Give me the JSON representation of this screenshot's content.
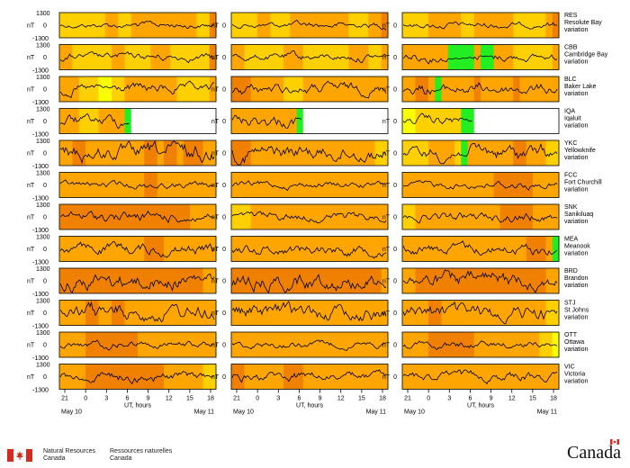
{
  "chart_data": {
    "type": "line",
    "title": "",
    "ylabel": "nT",
    "ytick_top": "1300",
    "ytick_mid": "0",
    "ytick_bottom": "-1300",
    "ylim": [
      -1300,
      1300
    ],
    "xlabel": "UT, hours",
    "x_ticks": [
      "21",
      "0",
      "3",
      "6",
      "9",
      "12",
      "15",
      "18"
    ],
    "date_left": "May 10",
    "date_right": "May 11",
    "panel_columns": 3,
    "stations": [
      {
        "code": "RES",
        "name": "Resolute Bay",
        "suffix": "variation",
        "activity": [
          [
            2,
            2,
            2,
            2,
            2,
            2,
            2,
            3,
            3,
            2,
            2,
            3,
            3,
            3,
            3,
            3,
            3,
            3,
            3,
            3,
            3,
            2,
            2,
            4
          ],
          [
            2,
            2,
            2,
            2,
            3,
            3,
            2,
            2,
            2,
            3,
            3,
            3,
            3,
            3,
            3,
            3,
            3,
            3,
            2,
            2,
            2,
            3,
            3,
            4
          ],
          [
            2,
            2,
            2,
            2,
            3,
            3,
            3,
            3,
            3,
            2,
            2,
            3,
            3,
            3,
            3,
            3,
            3,
            2,
            2,
            2,
            2,
            2,
            3,
            4
          ]
        ]
      },
      {
        "code": "CBB",
        "name": "Cambridge Bay",
        "suffix": "variation",
        "activity": [
          [
            3,
            3,
            2,
            2,
            2,
            2,
            2,
            2,
            3,
            3,
            2,
            2,
            2,
            2,
            3,
            3,
            3,
            2,
            2,
            2,
            2,
            2,
            2,
            4
          ],
          [
            3,
            3,
            2,
            2,
            2,
            2,
            2,
            2,
            3,
            3,
            3,
            2,
            2,
            2,
            2,
            2,
            2,
            2,
            3,
            3,
            3,
            2,
            2,
            3
          ],
          [
            3,
            3,
            3,
            3,
            3,
            3,
            3,
            0,
            0,
            0,
            0,
            3,
            0,
            0,
            3,
            3,
            3,
            2,
            2,
            2,
            2,
            2,
            2,
            3
          ]
        ]
      },
      {
        "code": "BLC",
        "name": "Baker Lake",
        "suffix": "variation",
        "activity": [
          [
            3,
            3,
            3,
            2,
            2,
            2,
            1,
            1,
            2,
            2,
            3,
            3,
            3,
            3,
            3,
            3,
            3,
            3,
            2,
            2,
            2,
            2,
            2,
            3
          ],
          [
            4,
            4,
            4,
            3,
            3,
            3,
            3,
            3,
            2,
            2,
            2,
            3,
            3,
            3,
            3,
            3,
            3,
            3,
            3,
            3,
            3,
            3,
            3,
            3
          ],
          [
            3,
            3,
            4,
            4,
            3,
            0,
            3,
            3,
            3,
            3,
            3,
            4,
            3,
            3,
            3,
            3,
            3,
            4,
            3,
            3,
            3,
            3,
            3,
            3
          ]
        ]
      },
      {
        "code": "IQA",
        "name": "Iqaluit",
        "suffix": "variation",
        "activity": [
          [
            3,
            3,
            3,
            2,
            2,
            2,
            3,
            3,
            3,
            3,
            0,
            -1,
            -1,
            -1,
            -1,
            -1,
            -1,
            -1,
            -1,
            -1,
            -1,
            -1,
            -1,
            -1
          ],
          [
            3,
            3,
            3,
            3,
            3,
            3,
            3,
            3,
            3,
            3,
            0,
            -1,
            -1,
            -1,
            -1,
            -1,
            -1,
            -1,
            -1,
            -1,
            -1,
            -1,
            -1,
            -1
          ],
          [
            1,
            1,
            2,
            2,
            2,
            2,
            2,
            2,
            2,
            0,
            0,
            -1,
            -1,
            -1,
            -1,
            -1,
            -1,
            -1,
            -1,
            -1,
            -1,
            -1,
            -1,
            -1
          ]
        ]
      },
      {
        "code": "YKC",
        "name": "Yellowknife",
        "suffix": "variation",
        "activity": [
          [
            3,
            3,
            4,
            4,
            3,
            3,
            3,
            3,
            3,
            3,
            3,
            3,
            3,
            4,
            4,
            3,
            4,
            4,
            3,
            4,
            4,
            4,
            3,
            3
          ],
          [
            4,
            4,
            4,
            3,
            3,
            3,
            3,
            3,
            3,
            3,
            3,
            3,
            3,
            3,
            3,
            3,
            3,
            3,
            3,
            3,
            3,
            3,
            2,
            2
          ],
          [
            2,
            2,
            2,
            2,
            3,
            3,
            3,
            3,
            2,
            0,
            3,
            3,
            3,
            3,
            3,
            3,
            3,
            4,
            4,
            3,
            3,
            3,
            2,
            2
          ]
        ]
      },
      {
        "code": "FCC",
        "name": "Fort Churchill",
        "suffix": "variation",
        "activity": [
          [
            3,
            3,
            3,
            3,
            3,
            3,
            3,
            3,
            3,
            3,
            3,
            3,
            3,
            4,
            4,
            3,
            3,
            3,
            3,
            3,
            3,
            3,
            3,
            3
          ],
          [
            3,
            3,
            3,
            3,
            3,
            3,
            3,
            3,
            3,
            3,
            3,
            3,
            3,
            3,
            3,
            3,
            3,
            3,
            3,
            3,
            3,
            3,
            3,
            3
          ],
          [
            3,
            3,
            3,
            3,
            3,
            3,
            3,
            3,
            3,
            3,
            3,
            3,
            3,
            3,
            4,
            4,
            4,
            4,
            4,
            4,
            3,
            3,
            3,
            3
          ]
        ]
      },
      {
        "code": "SNK",
        "name": "Sanikiluaq",
        "suffix": "variation",
        "activity": [
          [
            4,
            4,
            4,
            4,
            4,
            4,
            4,
            4,
            4,
            4,
            4,
            4,
            4,
            4,
            4,
            4,
            4,
            4,
            4,
            4,
            3,
            3,
            3,
            3
          ],
          [
            2,
            2,
            2,
            3,
            3,
            3,
            3,
            3,
            3,
            3,
            3,
            3,
            3,
            3,
            3,
            3,
            3,
            3,
            3,
            3,
            3,
            3,
            3,
            3
          ],
          [
            2,
            2,
            3,
            3,
            3,
            3,
            3,
            3,
            3,
            3,
            3,
            3,
            3,
            3,
            3,
            4,
            4,
            4,
            4,
            4,
            3,
            3,
            3,
            3
          ]
        ]
      },
      {
        "code": "MEA",
        "name": "Meanook",
        "suffix": "variation",
        "activity": [
          [
            3,
            3,
            3,
            3,
            3,
            3,
            3,
            3,
            3,
            3,
            3,
            3,
            3,
            4,
            4,
            4,
            3,
            3,
            3,
            3,
            3,
            3,
            3,
            3
          ],
          [
            3,
            3,
            3,
            3,
            3,
            3,
            3,
            3,
            3,
            3,
            3,
            3,
            3,
            3,
            3,
            3,
            3,
            3,
            3,
            3,
            3,
            3,
            3,
            3
          ],
          [
            3,
            3,
            3,
            3,
            3,
            3,
            3,
            3,
            3,
            3,
            3,
            3,
            3,
            3,
            3,
            3,
            3,
            3,
            3,
            4,
            4,
            4,
            3,
            0
          ]
        ]
      },
      {
        "code": "BRD",
        "name": "Brandon",
        "suffix": "variation",
        "activity": [
          [
            4,
            4,
            4,
            4,
            4,
            4,
            4,
            4,
            4,
            4,
            4,
            4,
            4,
            4,
            4,
            4,
            4,
            4,
            4,
            4,
            4,
            4,
            3,
            3
          ],
          [
            4,
            4,
            4,
            4,
            4,
            4,
            4,
            4,
            4,
            4,
            4,
            4,
            4,
            4,
            4,
            4,
            4,
            4,
            4,
            4,
            4,
            4,
            4,
            3
          ],
          [
            3,
            3,
            4,
            4,
            4,
            4,
            4,
            4,
            4,
            4,
            4,
            4,
            4,
            4,
            4,
            4,
            4,
            4,
            4,
            4,
            4,
            4,
            3,
            3
          ]
        ]
      },
      {
        "code": "STJ",
        "name": "St Johns",
        "suffix": "variation",
        "activity": [
          [
            3,
            3,
            3,
            3,
            4,
            4,
            3,
            3,
            4,
            4,
            3,
            3,
            3,
            3,
            3,
            3,
            3,
            3,
            3,
            3,
            3,
            3,
            3,
            3
          ],
          [
            3,
            3,
            3,
            3,
            3,
            3,
            3,
            3,
            3,
            3,
            3,
            3,
            3,
            3,
            3,
            3,
            3,
            3,
            3,
            3,
            3,
            3,
            3,
            3
          ],
          [
            3,
            3,
            3,
            3,
            4,
            4,
            3,
            3,
            3,
            3,
            3,
            3,
            3,
            3,
            3,
            3,
            3,
            3,
            3,
            3,
            3,
            3,
            2,
            2
          ]
        ]
      },
      {
        "code": "OTT",
        "name": "Ottawa",
        "suffix": "variation",
        "activity": [
          [
            3,
            3,
            3,
            3,
            4,
            4,
            4,
            4,
            4,
            4,
            4,
            4,
            3,
            3,
            3,
            3,
            3,
            3,
            3,
            3,
            3,
            3,
            3,
            3
          ],
          [
            3,
            3,
            3,
            3,
            3,
            3,
            3,
            3,
            3,
            3,
            3,
            3,
            3,
            3,
            3,
            3,
            3,
            3,
            3,
            3,
            3,
            3,
            3,
            3
          ],
          [
            3,
            3,
            3,
            3,
            4,
            4,
            4,
            4,
            4,
            4,
            4,
            3,
            3,
            3,
            3,
            3,
            3,
            3,
            3,
            3,
            3,
            2,
            2,
            1
          ]
        ]
      },
      {
        "code": "VIC",
        "name": "Victoria",
        "suffix": "variation",
        "activity": [
          [
            3,
            3,
            3,
            3,
            4,
            4,
            4,
            4,
            4,
            4,
            4,
            4,
            4,
            4,
            4,
            4,
            3,
            3,
            3,
            3,
            3,
            3,
            2,
            2
          ],
          [
            4,
            4,
            3,
            3,
            3,
            3,
            3,
            3,
            4,
            4,
            4,
            3,
            3,
            3,
            3,
            3,
            3,
            3,
            3,
            3,
            3,
            3,
            3,
            3
          ],
          [
            3,
            3,
            3,
            3,
            3,
            3,
            3,
            3,
            3,
            3,
            3,
            3,
            3,
            3,
            3,
            3,
            3,
            3,
            3,
            3,
            3,
            3,
            3,
            3
          ]
        ]
      }
    ]
  },
  "colors": {
    "activity": [
      "#22ee22",
      "#f8ff00",
      "#ffd000",
      "#ffa500",
      "#f08000"
    ],
    "no_data": "#ffffff",
    "trace": "#000000",
    "frame": "#000000",
    "text": "#000000"
  },
  "footer": {
    "dept_en_line1": "Natural Resources",
    "dept_en_line2": "Canada",
    "dept_fr_line1": "Ressources naturelles",
    "dept_fr_line2": "Canada",
    "wordmark": "Canada"
  }
}
